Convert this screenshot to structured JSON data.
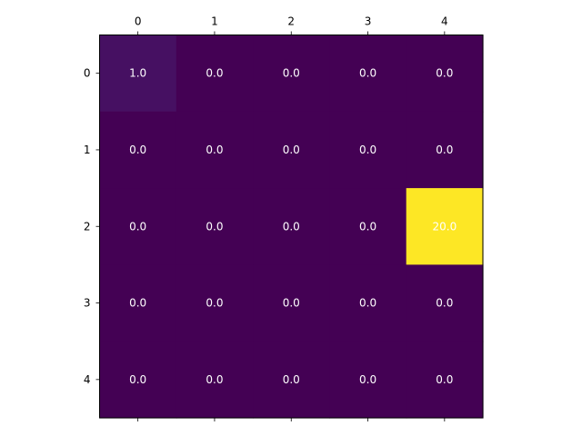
{
  "chart_data": {
    "type": "heatmap",
    "title": "",
    "xlabel": "",
    "ylabel": "",
    "x_ticks": [
      "0",
      "1",
      "2",
      "3",
      "4"
    ],
    "y_ticks": [
      "0",
      "1",
      "2",
      "3",
      "4"
    ],
    "x_axis_position": "top",
    "colormap": "viridis",
    "value_range": [
      0,
      20
    ],
    "grid": false,
    "values": [
      [
        1.0,
        0.0,
        0.0,
        0.0,
        0.0
      ],
      [
        0.0,
        0.0,
        0.0,
        0.0,
        0.0
      ],
      [
        0.0,
        0.0,
        0.0,
        0.0,
        20.0
      ],
      [
        0.0,
        0.0,
        0.0,
        0.0,
        0.0
      ],
      [
        0.0,
        0.0,
        0.0,
        0.0,
        0.0
      ]
    ],
    "cell_labels": [
      [
        "1.0",
        "0.0",
        "0.0",
        "0.0",
        "0.0"
      ],
      [
        "0.0",
        "0.0",
        "0.0",
        "0.0",
        "0.0"
      ],
      [
        "0.0",
        "0.0",
        "0.0",
        "0.0",
        "20.0"
      ],
      [
        "0.0",
        "0.0",
        "0.0",
        "0.0",
        "0.0"
      ],
      [
        "0.0",
        "0.0",
        "0.0",
        "0.0",
        "0.0"
      ]
    ],
    "cell_label_color": "#ffffff",
    "colors": {
      "low": "#440154",
      "one": "#48186a",
      "high": "#fde725"
    }
  }
}
